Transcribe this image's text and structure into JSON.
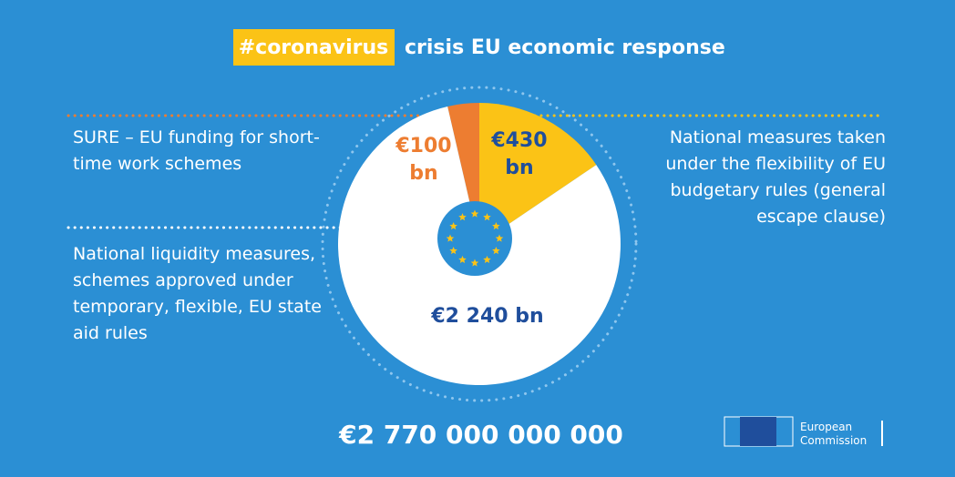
{
  "chart_data": {
    "type": "pie",
    "title": "#coronavirus",
    "subtitle": "crisis EU economic response",
    "categories": [
      "SURE – EU funding for short-time work schemes",
      "National measures taken under the flexibility of EU budgetary rules (general escape clause)",
      "National liquidity measures, schemes approved under temporary, flexible, EU state aid rules"
    ],
    "values": [
      100,
      430,
      2240
    ],
    "value_labels": [
      "€100 bn",
      "€430 bn",
      "€2 240 bn"
    ],
    "colors": [
      "#ed7d31",
      "#fbc316",
      "#ffffff"
    ],
    "total_label": "€2 770 000 000 000"
  },
  "logo": {
    "text": "European Commission"
  }
}
